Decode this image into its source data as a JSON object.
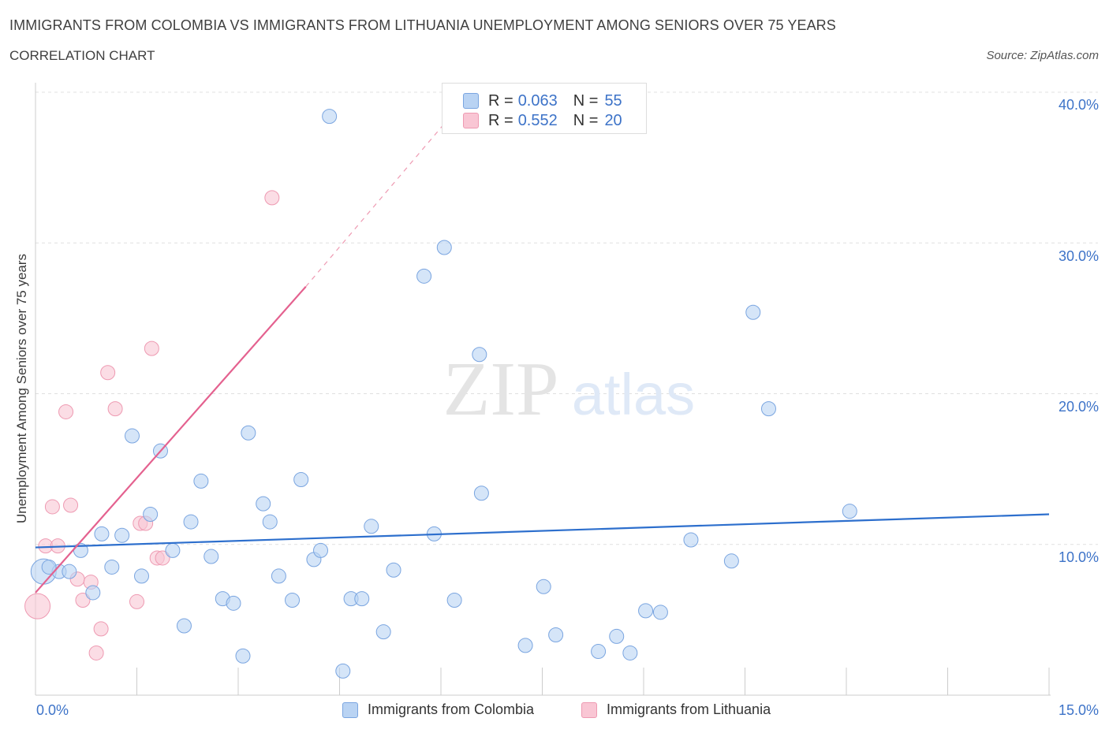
{
  "header": {
    "title": "IMMIGRANTS FROM COLOMBIA VS IMMIGRANTS FROM LITHUANIA UNEMPLOYMENT AMONG SENIORS OVER 75 YEARS",
    "subtitle": "CORRELATION CHART",
    "source": "Source: ZipAtlas.com"
  },
  "watermark": {
    "zip": "ZIP",
    "atlas": "atlas"
  },
  "legend_top": {
    "rows": [
      {
        "r_label": "R =",
        "r_value": "0.063",
        "n_label": "N =",
        "n_value": "55"
      },
      {
        "r_label": "R =",
        "r_value": "0.552",
        "n_label": "N =",
        "n_value": "20"
      }
    ]
  },
  "legend_bottom": {
    "items": [
      "Immigrants from Colombia",
      "Immigrants from Lithuania"
    ]
  },
  "colors": {
    "colombia_fill": "#b9d3f3",
    "colombia_stroke": "#7aa5e0",
    "colombia_line": "#2d6fcd",
    "lithuania_fill": "#f9c6d4",
    "lithuania_stroke": "#ee9ab2",
    "lithuania_line": "#e4618f",
    "grid": "#e0e0e0",
    "tick_label": "#3d73c8"
  },
  "chart_data": {
    "type": "scatter",
    "title": "IMMIGRANTS FROM COLOMBIA VS IMMIGRANTS FROM LITHUANIA UNEMPLOYMENT AMONG SENIORS OVER 75 YEARS",
    "xlabel": "",
    "ylabel": "Unemployment Among Seniors over 75 years",
    "xlim": [
      0,
      15
    ],
    "ylim": [
      0,
      40
    ],
    "x_tick_labels": [
      "0.0%",
      "15.0%"
    ],
    "y_ticks": [
      {
        "value": 10,
        "label": "10.0%"
      },
      {
        "value": 20,
        "label": "20.0%"
      },
      {
        "value": 30,
        "label": "30.0%"
      },
      {
        "value": 40,
        "label": "40.0%"
      }
    ],
    "grid": "horizontal dashed",
    "series": [
      {
        "name": "Immigrants from Colombia",
        "color": "#b9d3f3",
        "trend": {
          "x": [
            0,
            15
          ],
          "y": [
            9.8,
            12.0
          ]
        },
        "points": [
          {
            "x": 0.12,
            "y": 8.2,
            "r": 16
          },
          {
            "x": 0.35,
            "y": 8.2,
            "r": 9
          },
          {
            "x": 0.5,
            "y": 8.2,
            "r": 9
          },
          {
            "x": 0.67,
            "y": 9.6,
            "r": 9
          },
          {
            "x": 0.85,
            "y": 6.8,
            "r": 9
          },
          {
            "x": 0.98,
            "y": 10.7,
            "r": 9
          },
          {
            "x": 1.13,
            "y": 8.5,
            "r": 9
          },
          {
            "x": 1.28,
            "y": 10.6,
            "r": 9
          },
          {
            "x": 1.43,
            "y": 17.2,
            "r": 9
          },
          {
            "x": 1.57,
            "y": 7.9,
            "r": 9
          },
          {
            "x": 1.7,
            "y": 12.0,
            "r": 9
          },
          {
            "x": 1.85,
            "y": 16.2,
            "r": 9
          },
          {
            "x": 2.03,
            "y": 9.6,
            "r": 9
          },
          {
            "x": 2.2,
            "y": 4.6,
            "r": 9
          },
          {
            "x": 2.3,
            "y": 11.5,
            "r": 9
          },
          {
            "x": 2.45,
            "y": 14.2,
            "r": 9
          },
          {
            "x": 2.6,
            "y": 9.2,
            "r": 9
          },
          {
            "x": 2.77,
            "y": 6.4,
            "r": 9
          },
          {
            "x": 2.93,
            "y": 6.1,
            "r": 9
          },
          {
            "x": 3.07,
            "y": 2.6,
            "r": 9
          },
          {
            "x": 3.15,
            "y": 17.4,
            "r": 9
          },
          {
            "x": 3.37,
            "y": 12.7,
            "r": 9
          },
          {
            "x": 3.47,
            "y": 11.5,
            "r": 9
          },
          {
            "x": 3.6,
            "y": 7.9,
            "r": 9
          },
          {
            "x": 3.8,
            "y": 6.3,
            "r": 9
          },
          {
            "x": 3.93,
            "y": 14.3,
            "r": 9
          },
          {
            "x": 4.12,
            "y": 9.0,
            "r": 9
          },
          {
            "x": 4.22,
            "y": 9.6,
            "r": 9
          },
          {
            "x": 4.35,
            "y": 38.4,
            "r": 9
          },
          {
            "x": 4.55,
            "y": 1.6,
            "r": 9
          },
          {
            "x": 4.67,
            "y": 6.4,
            "r": 9
          },
          {
            "x": 4.83,
            "y": 6.4,
            "r": 9
          },
          {
            "x": 4.97,
            "y": 11.2,
            "r": 9
          },
          {
            "x": 5.15,
            "y": 4.2,
            "r": 9
          },
          {
            "x": 5.3,
            "y": 8.3,
            "r": 9
          },
          {
            "x": 5.75,
            "y": 27.8,
            "r": 9
          },
          {
            "x": 5.9,
            "y": 10.7,
            "r": 9
          },
          {
            "x": 6.05,
            "y": 29.7,
            "r": 9
          },
          {
            "x": 6.2,
            "y": 6.3,
            "r": 9
          },
          {
            "x": 6.57,
            "y": 22.6,
            "r": 9
          },
          {
            "x": 6.6,
            "y": 13.4,
            "r": 9
          },
          {
            "x": 7.25,
            "y": 3.3,
            "r": 9
          },
          {
            "x": 7.52,
            "y": 7.2,
            "r": 9
          },
          {
            "x": 7.7,
            "y": 4.0,
            "r": 9
          },
          {
            "x": 8.33,
            "y": 2.9,
            "r": 9
          },
          {
            "x": 8.6,
            "y": 3.9,
            "r": 9
          },
          {
            "x": 8.8,
            "y": 2.8,
            "r": 9
          },
          {
            "x": 9.03,
            "y": 5.6,
            "r": 9
          },
          {
            "x": 9.25,
            "y": 5.5,
            "r": 9
          },
          {
            "x": 9.7,
            "y": 10.3,
            "r": 9
          },
          {
            "x": 10.3,
            "y": 8.9,
            "r": 9
          },
          {
            "x": 10.62,
            "y": 25.4,
            "r": 9
          },
          {
            "x": 10.85,
            "y": 19.0,
            "r": 9
          },
          {
            "x": 12.05,
            "y": 12.2,
            "r": 9
          },
          {
            "x": 0.2,
            "y": 8.5,
            "r": 9
          }
        ]
      },
      {
        "name": "Immigrants from Lithuania",
        "color": "#f9c6d4",
        "trend": {
          "x": [
            0,
            4.0
          ],
          "y": [
            6.8,
            27.1
          ],
          "dashed_to": {
            "x": 6.2,
            "y": 38.7
          }
        },
        "points": [
          {
            "x": 0.03,
            "y": 5.9,
            "r": 16
          },
          {
            "x": 0.15,
            "y": 9.9,
            "r": 9
          },
          {
            "x": 0.25,
            "y": 12.5,
            "r": 9
          },
          {
            "x": 0.33,
            "y": 9.9,
            "r": 9
          },
          {
            "x": 0.45,
            "y": 18.8,
            "r": 9
          },
          {
            "x": 0.52,
            "y": 12.6,
            "r": 9
          },
          {
            "x": 0.62,
            "y": 7.7,
            "r": 9
          },
          {
            "x": 0.7,
            "y": 6.3,
            "r": 9
          },
          {
            "x": 0.82,
            "y": 7.5,
            "r": 9
          },
          {
            "x": 0.9,
            "y": 2.8,
            "r": 9
          },
          {
            "x": 0.97,
            "y": 4.4,
            "r": 9
          },
          {
            "x": 1.07,
            "y": 21.4,
            "r": 9
          },
          {
            "x": 1.18,
            "y": 19.0,
            "r": 9
          },
          {
            "x": 1.5,
            "y": 6.2,
            "r": 9
          },
          {
            "x": 1.55,
            "y": 11.4,
            "r": 9
          },
          {
            "x": 1.63,
            "y": 11.4,
            "r": 9
          },
          {
            "x": 1.72,
            "y": 23.0,
            "r": 9
          },
          {
            "x": 1.8,
            "y": 9.1,
            "r": 9
          },
          {
            "x": 1.88,
            "y": 9.1,
            "r": 9
          },
          {
            "x": 3.5,
            "y": 33.0,
            "r": 9
          }
        ]
      }
    ]
  }
}
